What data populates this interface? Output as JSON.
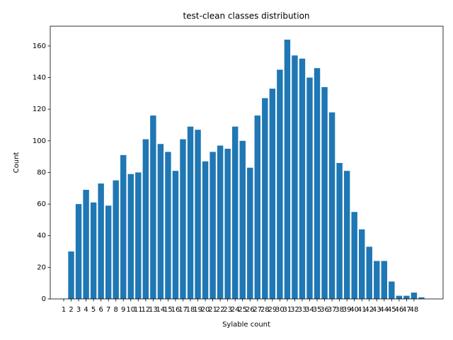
{
  "chart_data": {
    "type": "bar",
    "title": "test-clean classes distribution",
    "x_label": "Sylable count",
    "y_label": "Count",
    "categories": [
      "1",
      "2",
      "3",
      "4",
      "5",
      "6",
      "7",
      "8",
      "9",
      "10",
      "11",
      "12",
      "13",
      "14",
      "15",
      "16",
      "17",
      "18",
      "19",
      "20",
      "21",
      "22",
      "23",
      "24",
      "25",
      "26",
      "27",
      "28",
      "29",
      "30",
      "31",
      "32",
      "33",
      "34",
      "35",
      "36",
      "37",
      "38",
      "39",
      "40",
      "41",
      "42",
      "43",
      "44",
      "45",
      "46",
      "47",
      "48",
      null
    ],
    "values": [
      0,
      30,
      60,
      69,
      61,
      73,
      59,
      75,
      91,
      79,
      80,
      101,
      116,
      98,
      93,
      81,
      101,
      109,
      107,
      87,
      93,
      97,
      95,
      109,
      100,
      83,
      116,
      127,
      133,
      145,
      164,
      154,
      152,
      140,
      146,
      134,
      118,
      86,
      81,
      55,
      44,
      33,
      24,
      24,
      11,
      2,
      2,
      4,
      1
    ],
    "color": "#1f77b4",
    "ylim": [
      0,
      172.5
    ],
    "yticks": [
      0,
      20,
      40,
      60,
      80,
      100,
      120,
      140,
      160
    ],
    "grid": false
  }
}
